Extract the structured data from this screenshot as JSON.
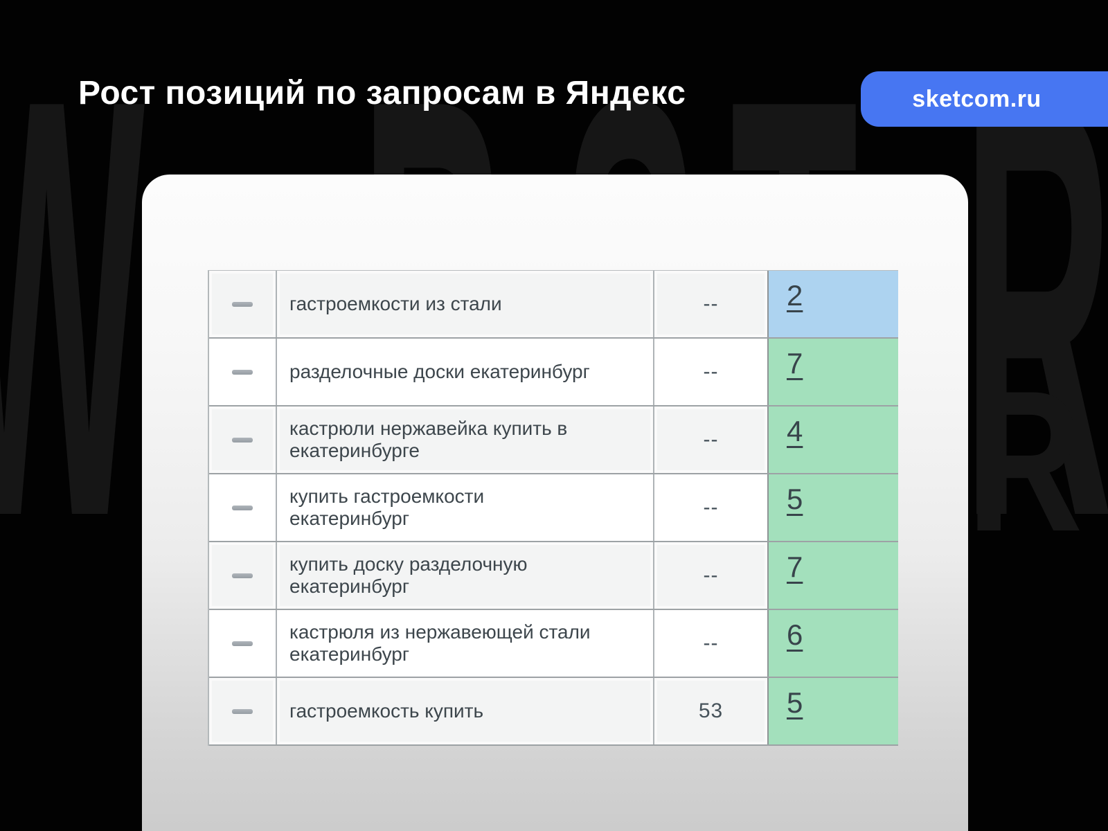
{
  "page": {
    "title": "Рост позиций по запросам в Яндекс",
    "badge_label": "sketcom.ru"
  },
  "watermark": {
    "letters": [
      "W",
      "B",
      "S",
      "T",
      "R"
    ],
    "partial_letter": "R"
  },
  "colors": {
    "accent_blue": "#4776f2",
    "watermark_gray": "#161616",
    "cell_blue": "#add3f0",
    "cell_green": "#a3e0bc"
  },
  "table": {
    "rows": [
      {
        "drag_icon": "dash-icon",
        "query": "гастроемкости из стали",
        "old_position": "--",
        "new_position": "2",
        "highlight": "blue"
      },
      {
        "drag_icon": "dash-icon",
        "query": "разделочные доски екатеринбург",
        "old_position": "--",
        "new_position": "7",
        "highlight": "green"
      },
      {
        "drag_icon": "dash-icon",
        "query": "кастрюли нержавейка купить в\nекатеринбурге",
        "old_position": "--",
        "new_position": "4",
        "highlight": "green"
      },
      {
        "drag_icon": "dash-icon",
        "query": "купить гастроемкости\nекатеринбург",
        "old_position": "--",
        "new_position": "5",
        "highlight": "green"
      },
      {
        "drag_icon": "dash-icon",
        "query": "купить доску разделочную\nекатеринбург",
        "old_position": "--",
        "new_position": "7",
        "highlight": "green"
      },
      {
        "drag_icon": "dash-icon",
        "query": "кастрюля из нержавеющей стали\nекатеринбург",
        "old_position": "--",
        "new_position": "6",
        "highlight": "green"
      },
      {
        "drag_icon": "dash-icon",
        "query": "гастроемкость купить",
        "old_position": "53",
        "new_position": "5",
        "highlight": "green"
      }
    ]
  }
}
